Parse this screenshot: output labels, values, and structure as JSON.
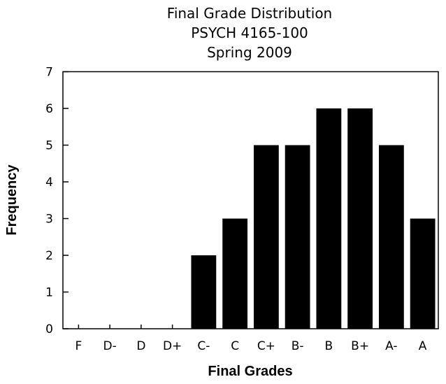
{
  "chart_data": {
    "type": "bar",
    "title": "Final Grade Distribution",
    "title_lines": [
      "Final Grade Distribution",
      "PSYCH 4165-100",
      "Spring 2009"
    ],
    "xlabel": "Final Grades",
    "ylabel": "Frequency",
    "categories": [
      "F",
      "D-",
      "D",
      "D+",
      "C-",
      "C",
      "C+",
      "B-",
      "B",
      "B+",
      "A-",
      "A"
    ],
    "values": [
      0,
      0,
      0,
      0,
      2,
      3,
      5,
      5,
      6,
      6,
      5,
      3
    ],
    "ylim": [
      0,
      7
    ],
    "yticks": [
      0,
      1,
      2,
      3,
      4,
      5,
      6,
      7
    ],
    "bar_color": "#000000",
    "grid": false,
    "legend": "none"
  }
}
